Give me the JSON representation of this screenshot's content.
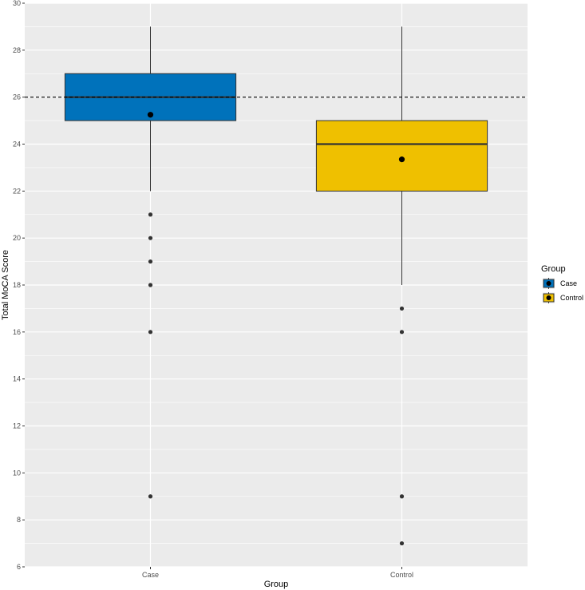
{
  "chart_data": {
    "type": "boxplot",
    "title": "",
    "xlabel": "Group",
    "ylabel": "Total MoCA Score",
    "ylim": [
      6,
      30
    ],
    "yticks": [
      6,
      8,
      10,
      12,
      14,
      16,
      18,
      20,
      22,
      24,
      26,
      28,
      30
    ],
    "categories": [
      "Case",
      "Control"
    ],
    "reference_line": {
      "y": 26,
      "style": "dashed"
    },
    "grid": true,
    "legend": {
      "title": "Group",
      "placement": "right",
      "entries": [
        "Case",
        "Control"
      ]
    },
    "series": [
      {
        "name": "Case",
        "color": "#0072BB",
        "whisker_low": 22,
        "q1": 25,
        "median": 26,
        "q3": 27,
        "whisker_high": 29,
        "mean": 25.25,
        "outliers": [
          21,
          20,
          19,
          18,
          16,
          9
        ]
      },
      {
        "name": "Control",
        "color": "#EFC000",
        "whisker_low": 18,
        "q1": 22,
        "median": 24,
        "q3": 25,
        "whisker_high": 29,
        "mean": 23.35,
        "outliers": [
          17,
          16,
          9,
          7
        ]
      }
    ]
  }
}
